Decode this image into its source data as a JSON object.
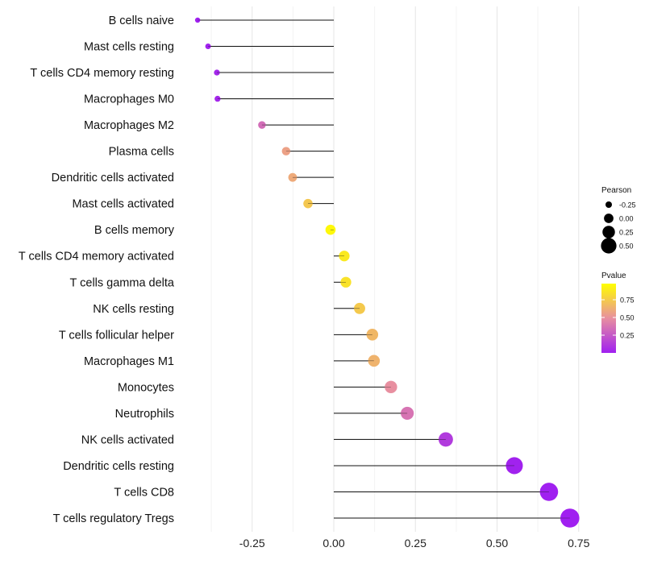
{
  "chart_data": {
    "type": "lollipop",
    "title": "",
    "xlabel": "",
    "ylabel": "",
    "xlim": [
      -0.5,
      0.78
    ],
    "x_ticks": [
      "-0.25",
      "0.00",
      "0.25",
      "0.50",
      "0.75"
    ],
    "x_tick_values": [
      -0.25,
      0,
      0.25,
      0.5,
      0.75
    ],
    "grid": true,
    "categories": [
      "B cells naive",
      "Mast cells resting",
      "T cells CD4 memory resting",
      "Macrophages M0",
      "Macrophages M2",
      "Plasma cells",
      "Dendritic cells activated",
      "Mast cells activated",
      "B cells memory",
      "T cells CD4 memory activated",
      "T cells gamma delta",
      "NK cells resting",
      "T cells follicular helper",
      "Macrophages M1",
      "Monocytes",
      "Neutrophils",
      "NK cells activated",
      "Dendritic cells resting",
      "T cells CD8",
      "T cells regulatory  Tregs"
    ],
    "pearson": [
      -0.417,
      -0.385,
      -0.358,
      -0.356,
      -0.22,
      -0.146,
      -0.126,
      -0.079,
      -0.01,
      0.032,
      0.037,
      0.079,
      0.118,
      0.123,
      0.175,
      0.225,
      0.343,
      0.553,
      0.659,
      0.723
    ],
    "pvalue": [
      0.0,
      0.01,
      0.03,
      0.03,
      0.35,
      0.58,
      0.62,
      0.75,
      0.97,
      0.9,
      0.87,
      0.76,
      0.68,
      0.66,
      0.5,
      0.38,
      0.12,
      0.01,
      0.0,
      0.0
    ],
    "legend_size": {
      "title": "Pearson",
      "labels": [
        "-0.25",
        "0.00",
        "0.25",
        "0.50"
      ],
      "values": [
        -0.25,
        0,
        0.25,
        0.5
      ]
    },
    "legend_color": {
      "title": "Pvalue",
      "labels": [
        "0.75",
        "0.50",
        "0.25"
      ],
      "values": [
        0.75,
        0.5,
        0.25
      ],
      "low_color": "#a020f0",
      "mid_color": "#e88fa0",
      "high_color": "#ffff00"
    },
    "legend_placement": "right"
  }
}
